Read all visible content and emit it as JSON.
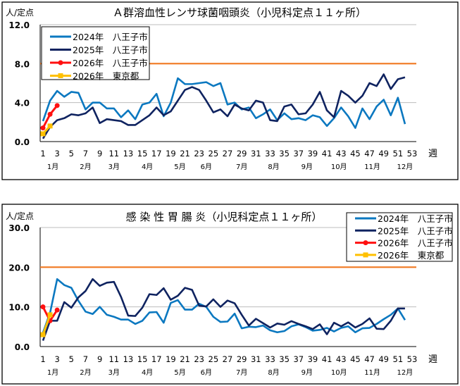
{
  "chart_data": [
    {
      "type": "line",
      "title": "Ａ群溶血性レンサ球菌咽頭炎（小児科定点１１ヶ所）",
      "ylabel": "人/定点",
      "xlabel": "週",
      "ylim": [
        0,
        12
      ],
      "yticks": [
        "0.0",
        "4.0",
        "8.0",
        "12.0"
      ],
      "ytick_values": [
        0,
        4,
        8,
        12
      ],
      "xlim": [
        1,
        53
      ],
      "xticks": [
        "1",
        "3",
        "5",
        "7",
        "9",
        "11",
        "13",
        "15",
        "17",
        "19",
        "21",
        "23",
        "25",
        "27",
        "29",
        "31",
        "33",
        "35",
        "37",
        "39",
        "41",
        "43",
        "45",
        "47",
        "49",
        "51",
        "53"
      ],
      "months": [
        {
          "label": "1月",
          "week": 2.4
        },
        {
          "label": "2月",
          "week": 7
        },
        {
          "label": "3月",
          "week": 11
        },
        {
          "label": "4月",
          "week": 15.7
        },
        {
          "label": "5月",
          "week": 20.3
        },
        {
          "label": "6月",
          "week": 24
        },
        {
          "label": "7月",
          "week": 29
        },
        {
          "label": "8月",
          "week": 33.5
        },
        {
          "label": "9月",
          "week": 38.2
        },
        {
          "label": "10月",
          "week": 42.7
        },
        {
          "label": "11月",
          "week": 47.4
        },
        {
          "label": "12月",
          "week": 52
        }
      ],
      "grid": true,
      "legend": "top-left",
      "threshold": {
        "value": 8.0,
        "color": "#F07820"
      },
      "series": [
        {
          "name": "2024年　八王子市",
          "color": "#0B78C0",
          "marker": "none",
          "start_week": 1,
          "values": [
            2.1,
            4.2,
            5.2,
            4.6,
            5.1,
            5.0,
            3.3,
            4.0,
            4.0,
            3.4,
            3.4,
            2.5,
            3.2,
            2.3,
            3.8,
            4.0,
            4.9,
            2.6,
            4.0,
            6.5,
            5.9,
            5.9,
            6.0,
            6.1,
            5.7,
            6.0,
            3.8,
            4.0,
            3.3,
            3.5,
            2.4,
            2.8,
            3.3,
            2.2,
            2.9,
            2.3,
            2.4,
            2.2,
            2.7,
            2.5,
            1.6,
            2.4,
            3.5,
            2.6,
            1.4,
            3.4,
            2.3,
            3.6,
            4.3,
            2.7,
            4.5,
            1.8
          ]
        },
        {
          "name": "2025年　八王子市",
          "color": "#0F2360",
          "marker": "none",
          "start_week": 1,
          "values": [
            0.3,
            1.5,
            2.2,
            2.4,
            2.8,
            2.7,
            2.9,
            3.5,
            1.9,
            2.3,
            2.2,
            2.1,
            1.7,
            1.7,
            2.2,
            2.7,
            3.5,
            2.7,
            3.1,
            4.2,
            5.3,
            5.6,
            5.3,
            4.2,
            3.0,
            3.3,
            2.6,
            3.8,
            3.4,
            3.2,
            4.2,
            4.0,
            2.2,
            2.1,
            3.6,
            3.8,
            2.8,
            2.9,
            3.8,
            5.1,
            3.2,
            2.5,
            5.2,
            4.7,
            4.0,
            4.7,
            6.0,
            5.7,
            6.9,
            5.4,
            6.4,
            6.6
          ]
        },
        {
          "name": "2026年　八王子市",
          "color": "#FF1010",
          "marker": "circle",
          "start_week": 1,
          "values": [
            1.4,
            2.8,
            3.7
          ]
        },
        {
          "name": "2026年　東京都",
          "color": "#FFC000",
          "marker": "square",
          "start_week": 1,
          "values": [
            0.8,
            1.6
          ]
        }
      ]
    },
    {
      "type": "line",
      "title": "感 染 性 胃 腸 炎（小児科定点１１ヶ所）",
      "ylabel": "人/定点",
      "xlabel": "週",
      "ylim": [
        0,
        30
      ],
      "yticks": [
        "0.0",
        "10.0",
        "20.0",
        "30.0"
      ],
      "ytick_values": [
        0,
        10,
        20,
        30
      ],
      "xlim": [
        1,
        53
      ],
      "xticks": [
        "1",
        "3",
        "5",
        "7",
        "9",
        "11",
        "13",
        "15",
        "17",
        "19",
        "21",
        "23",
        "25",
        "27",
        "29",
        "31",
        "33",
        "35",
        "37",
        "39",
        "41",
        "43",
        "45",
        "47",
        "49",
        "51",
        "53"
      ],
      "months": [
        {
          "label": "1月",
          "week": 2.4
        },
        {
          "label": "2月",
          "week": 7
        },
        {
          "label": "3月",
          "week": 11
        },
        {
          "label": "4月",
          "week": 15.7
        },
        {
          "label": "5月",
          "week": 20.3
        },
        {
          "label": "6月",
          "week": 24
        },
        {
          "label": "7月",
          "week": 29
        },
        {
          "label": "8月",
          "week": 33.5
        },
        {
          "label": "9月",
          "week": 38.2
        },
        {
          "label": "10月",
          "week": 42.7
        },
        {
          "label": "11月",
          "week": 47.4
        },
        {
          "label": "12月",
          "week": 52
        }
      ],
      "grid": true,
      "legend": "top-right",
      "threshold": {
        "value": 20.0,
        "color": "#F07820"
      },
      "series": [
        {
          "name": "2024年　八王子市",
          "color": "#0B78C0",
          "marker": "none",
          "start_week": 1,
          "values": [
            3.5,
            8.5,
            17.0,
            15.5,
            14.8,
            11.5,
            8.8,
            8.2,
            10.0,
            8.0,
            7.5,
            6.8,
            6.8,
            5.7,
            6.5,
            8.6,
            8.7,
            6.0,
            11.0,
            11.7,
            9.3,
            9.3,
            10.8,
            10.0,
            7.5,
            6.2,
            6.3,
            8.3,
            4.6,
            5.0,
            4.9,
            5.3,
            4.1,
            3.6,
            3.9,
            5.1,
            5.6,
            4.9,
            4.0,
            4.2,
            4.7,
            3.8,
            4.7,
            5.1,
            3.6,
            4.6,
            4.7,
            5.7,
            6.9,
            8.0,
            9.6,
            6.7
          ]
        },
        {
          "name": "2025年　八王子市",
          "color": "#0F2360",
          "marker": "none",
          "start_week": 1,
          "values": [
            1.5,
            6.5,
            6.5,
            11.2,
            9.8,
            12.4,
            14.0,
            17.0,
            15.3,
            16.1,
            16.3,
            12.5,
            7.8,
            7.7,
            9.8,
            13.2,
            13.0,
            14.7,
            11.8,
            12.8,
            14.8,
            14.3,
            10.3,
            10.1,
            11.9,
            10.0,
            11.6,
            10.9,
            8.0,
            5.3,
            7.0,
            5.9,
            4.8,
            5.8,
            5.5,
            6.4,
            5.7,
            5.1,
            4.4,
            5.6,
            3.1,
            6.0,
            5.1,
            6.1,
            4.8,
            5.7,
            7.1,
            4.5,
            4.4,
            6.5,
            9.6,
            9.6
          ]
        },
        {
          "name": "2026年　八王子市",
          "color": "#FF1010",
          "marker": "circle",
          "start_week": 1,
          "values": [
            10.0,
            6.5,
            9.2
          ]
        },
        {
          "name": "2026年　東京都",
          "color": "#FFC000",
          "marker": "square",
          "start_week": 1,
          "values": [
            3.0,
            8.0
          ]
        }
      ]
    }
  ]
}
